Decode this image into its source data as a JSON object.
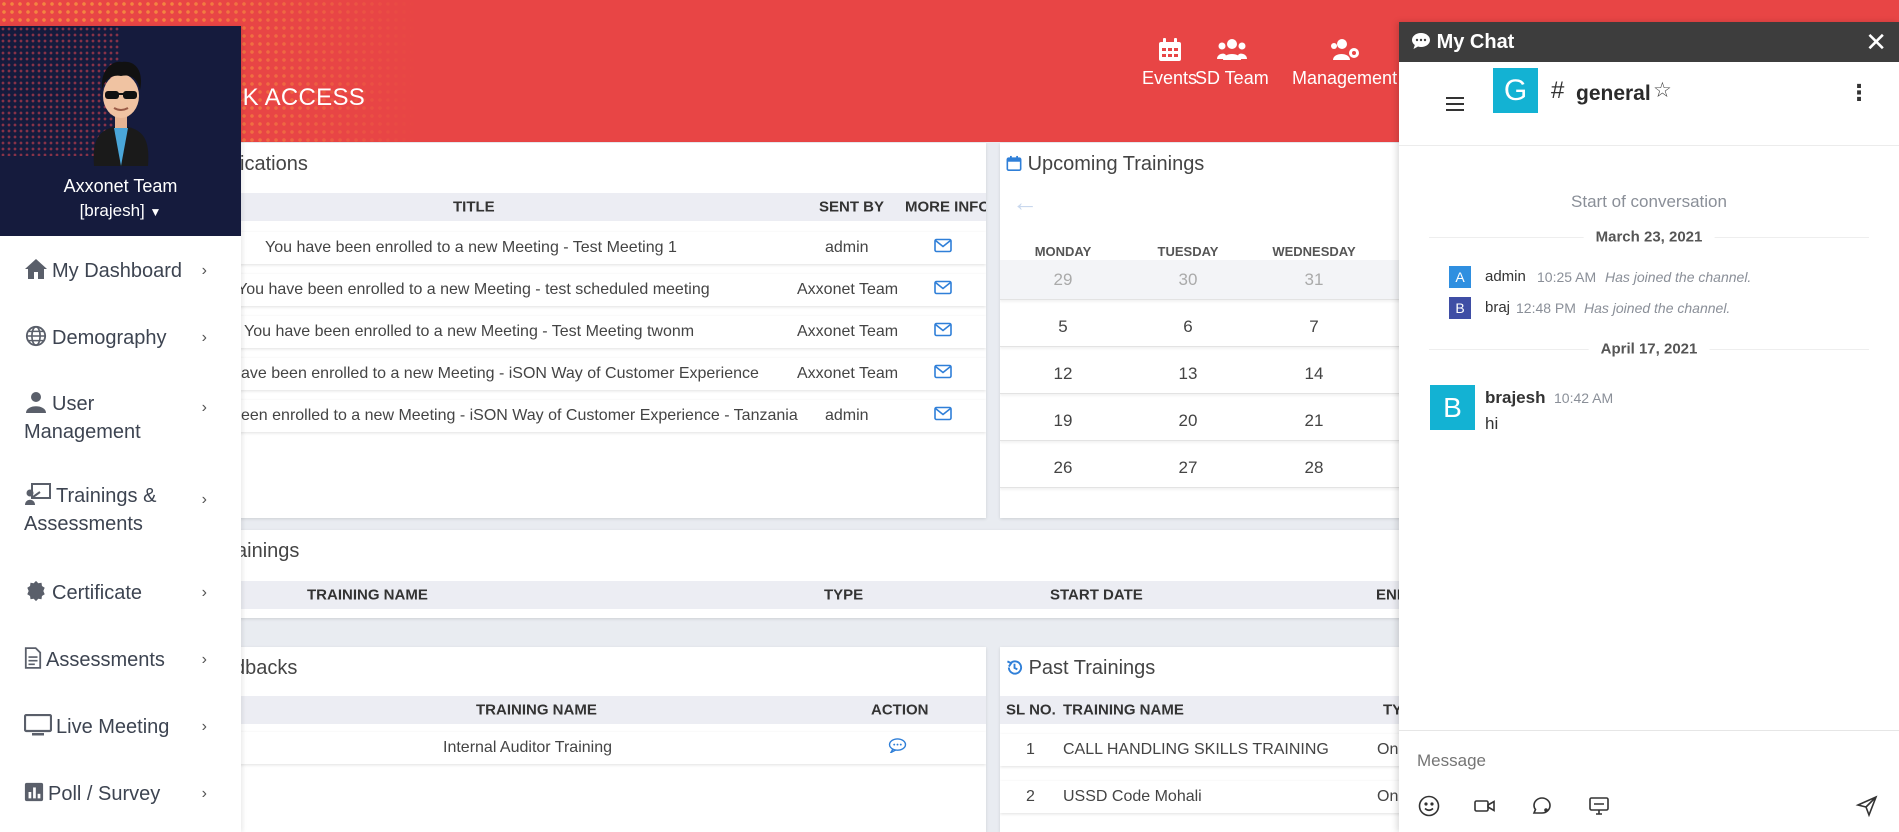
{
  "header": {
    "quick_access": "CK ACCESS",
    "nav": [
      {
        "label": "Events",
        "icon": "calendar-icon"
      },
      {
        "label": "SD Team",
        "icon": "users-icon"
      },
      {
        "label": "Management",
        "icon": "users-gear-icon"
      }
    ]
  },
  "sidebar": {
    "team": "Axxonet Team",
    "user": "[brajesh]",
    "items": [
      {
        "line1": "My Dashboard",
        "line2": "",
        "icon": "home-icon"
      },
      {
        "line1": "Demography",
        "line2": "",
        "icon": "globe-icon"
      },
      {
        "line1": "User",
        "line2": "Management",
        "icon": "user-icon"
      },
      {
        "line1": "Trainings &",
        "line2": "Assessments",
        "icon": "presentation-icon"
      },
      {
        "line1": "Certificate",
        "line2": "",
        "icon": "badge-icon"
      },
      {
        "line1": "Assessments",
        "line2": "",
        "icon": "file-icon"
      },
      {
        "line1": "Live Meeting",
        "line2": "",
        "icon": "monitor-icon"
      },
      {
        "line1": "Poll / Survey",
        "line2": "",
        "icon": "chart-icon"
      }
    ]
  },
  "notifications": {
    "title": "ications",
    "columns": {
      "title": "TITLE",
      "sent_by": "SENT BY",
      "more_info": "MORE INFO"
    },
    "rows": [
      {
        "title": "You have been enrolled to a new Meeting - Test Meeting 1",
        "sent_by": "admin"
      },
      {
        "title": "You have been enrolled to a new Meeting - test scheduled meeting",
        "sent_by": "Axxonet Team"
      },
      {
        "title": "You have been enrolled to a new Meeting - Test Meeting twonm",
        "sent_by": "Axxonet Team"
      },
      {
        "title": "ave been enrolled to a new Meeting - iSON Way of Customer Experience",
        "sent_by": "Axxonet Team"
      },
      {
        "title": "een enrolled to a new Meeting - iSON Way of Customer Experience - Tanzania",
        "sent_by": "admin"
      }
    ]
  },
  "upcoming": {
    "title": "Upcoming Trainings",
    "prev_arrow": "←",
    "days": [
      "MONDAY",
      "TUESDAY",
      "WEDNESDAY"
    ],
    "weeks": [
      [
        "29",
        "30",
        "31"
      ],
      [
        "5",
        "6",
        "7"
      ],
      [
        "12",
        "13",
        "14"
      ],
      [
        "19",
        "20",
        "21"
      ],
      [
        "26",
        "27",
        "28"
      ]
    ]
  },
  "trainings": {
    "title": "ainings",
    "columns": {
      "name": "TRAINING NAME",
      "type": "TYPE",
      "start": "START DATE",
      "end": "END"
    }
  },
  "feedbacks": {
    "title": "dbacks",
    "columns": {
      "name": "TRAINING NAME",
      "action": "ACTION"
    },
    "rows": [
      {
        "name": "Internal Auditor Training"
      }
    ]
  },
  "past": {
    "title": "Past Trainings",
    "columns": {
      "sl": "SL NO.",
      "name": "TRAINING NAME",
      "type": "TY"
    },
    "rows": [
      {
        "sl": "1",
        "name": "CALL HANDLING SKILLS TRAINING",
        "type": "On"
      },
      {
        "sl": "2",
        "name": "USSD Code Mohali",
        "type": "On"
      }
    ]
  },
  "chat": {
    "title": "My Chat",
    "close": "✕",
    "room_letter": "G",
    "room_hash": "#",
    "room": "general",
    "start": "Start of conversation",
    "date1": "March 23, 2021",
    "sys_msgs": [
      {
        "letter": "A",
        "name": "admin",
        "time": "10:25 AM",
        "text": "Has joined the channel.",
        "color": "#2f8fe0"
      },
      {
        "letter": "B",
        "name": "braj",
        "time": "12:48 PM",
        "text": "Has joined the channel.",
        "color": "#3f4ea5"
      }
    ],
    "date2": "April 17, 2021",
    "message": {
      "letter": "B",
      "name": "brajesh",
      "time": "10:42 AM",
      "text": "hi"
    },
    "placeholder": "Message"
  },
  "colors": {
    "brand_red": "#e84545",
    "sidebar_dark": "#151b3d",
    "room_cyan": "#13b2d3",
    "link_blue": "#2f7fd8"
  }
}
